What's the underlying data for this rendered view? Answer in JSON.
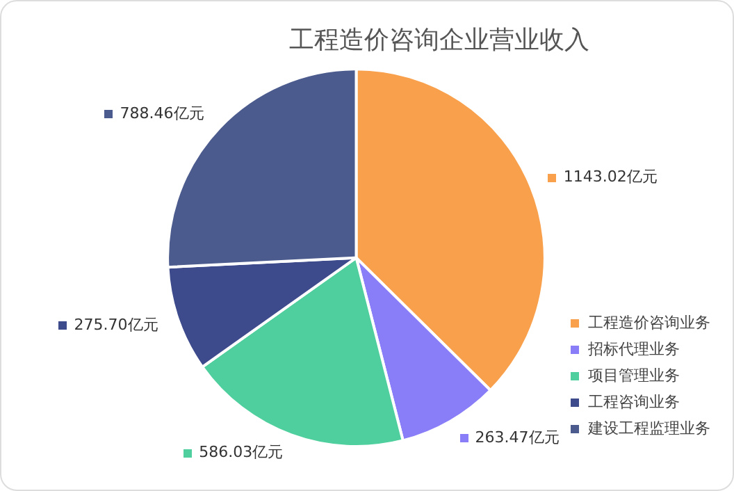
{
  "chart_data": {
    "type": "pie",
    "title": "工程造价咨询企业营业收入",
    "categories": [
      "工程造价咨询业务",
      "招标代理业务",
      "项目管理业务",
      "工程咨询业务",
      "建设工程监理业务"
    ],
    "values": [
      1143.02,
      263.47,
      586.03,
      275.7,
      788.46
    ],
    "value_labels": [
      "1143.02亿元",
      "263.47亿元",
      "586.03亿元",
      "275.70亿元",
      "788.46亿元"
    ],
    "colors": [
      "#f9a04c",
      "#8a7ef8",
      "#4ecf9d",
      "#3d4a8c",
      "#4c5b8e"
    ],
    "legend": "bottom right"
  }
}
